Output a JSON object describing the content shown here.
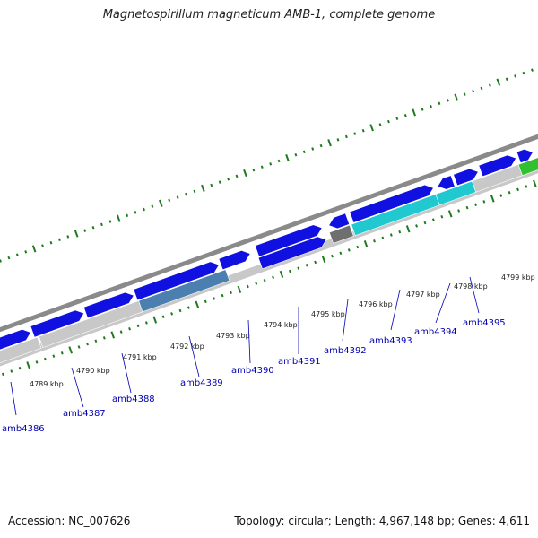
{
  "title": "Magnetospirillum magneticum AMB-1, complete genome",
  "footer": {
    "accession": "Accession: NC_007626",
    "summary": "Topology: circular; Length: 4,967,148 bp; Genes: 4,611"
  },
  "colors": {
    "backbone": "#8a8a8a",
    "gene_forward": "#1010e0",
    "gene_highlight_blue": "#4a7fb0",
    "gene_highlight_cyan": "#20c8d0",
    "gene_grey": "#c8c8c8",
    "gene_dark_grey": "#6f6f6f",
    "gene_green": "#30c030",
    "tick": "#1f7a1f",
    "gene_label": "#0000b3"
  },
  "scale_labels": [
    "4789 kbp",
    "4790 kbp",
    "4791 kbp",
    "4792 kbp",
    "4793 kbp",
    "4794 kbp",
    "4795 kbp",
    "4796 kbp",
    "4797 kbp",
    "4798 kbp",
    "4799 kbp"
  ],
  "gene_labels": [
    "amb4386",
    "amb4387",
    "amb4388",
    "amb4389",
    "amb4390",
    "amb4391",
    "amb4392",
    "amb4393",
    "amb4394",
    "amb4395"
  ]
}
